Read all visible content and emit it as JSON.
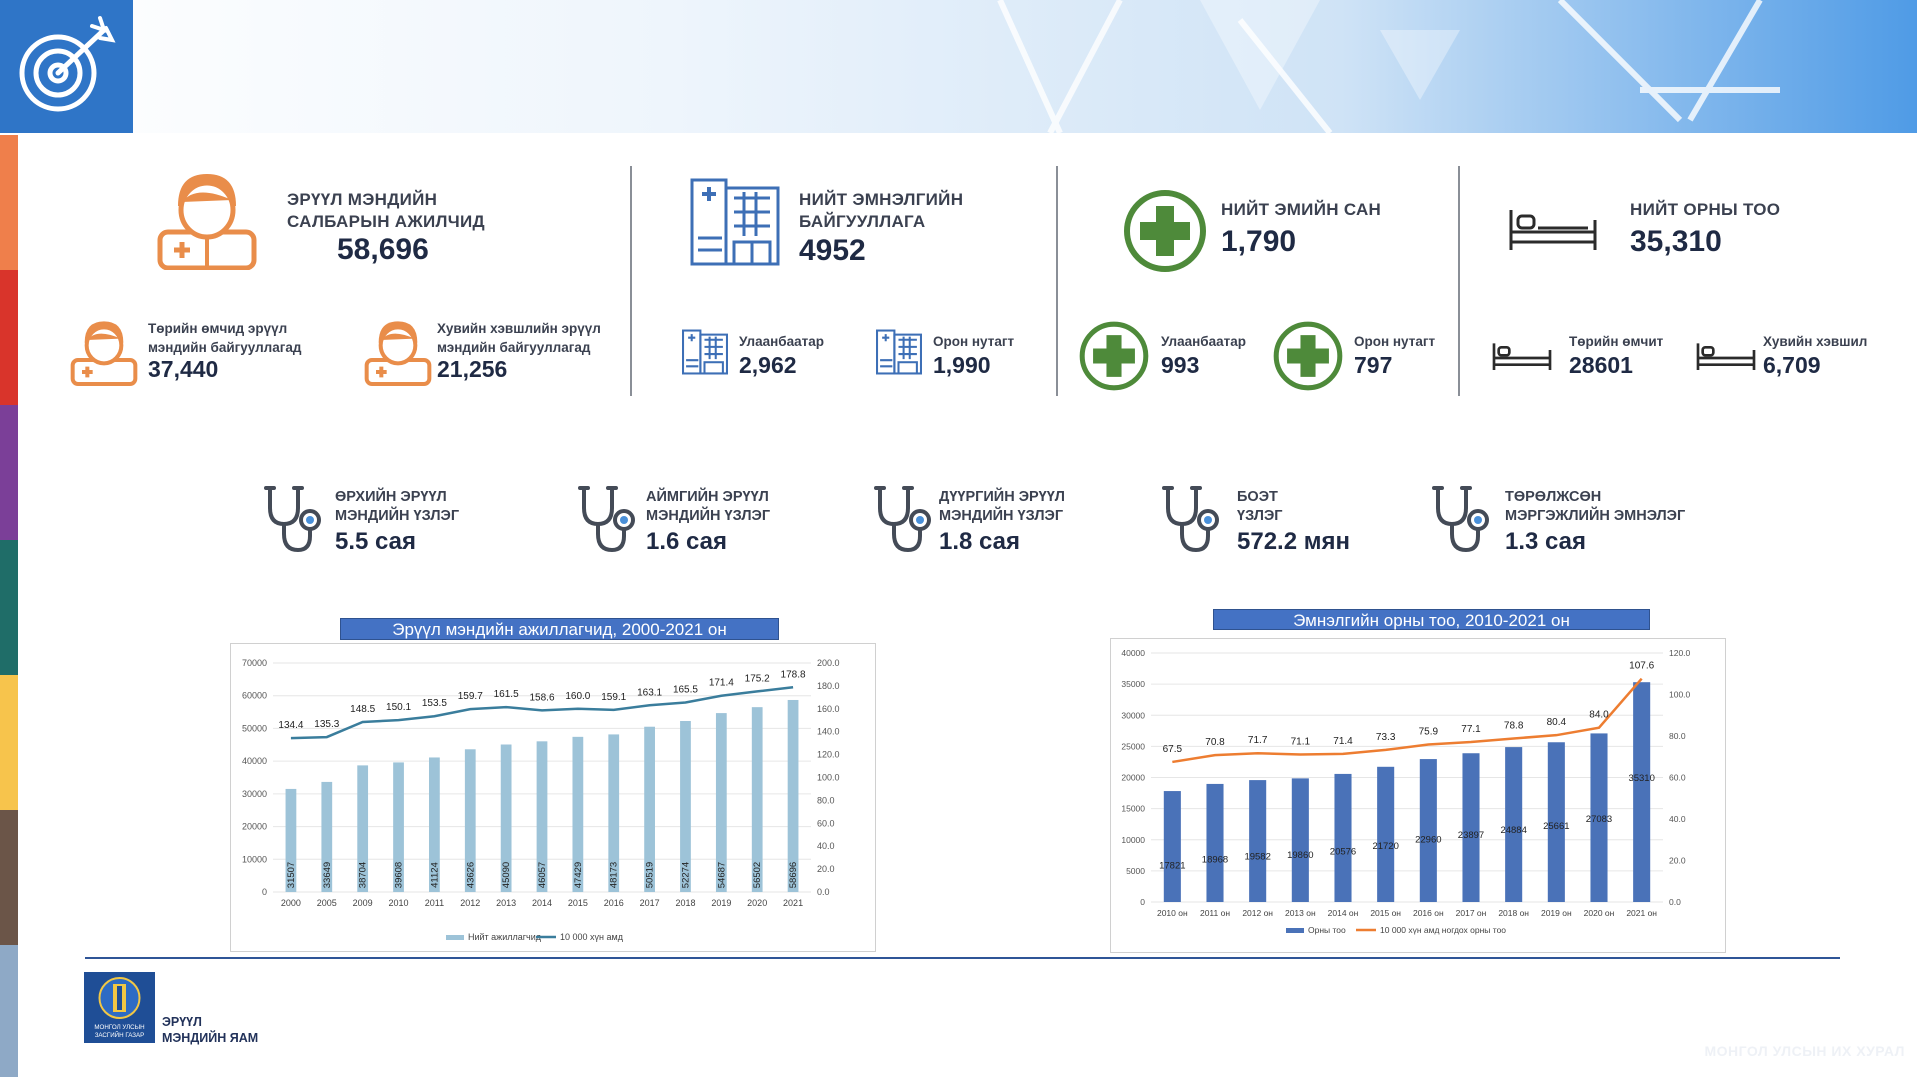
{
  "header": {
    "target_icon": "target-arrow-icon"
  },
  "strip_colors": [
    "#ef7f4b",
    "#d9342b",
    "#7b3f98",
    "#1f6d68",
    "#f7c44c",
    "#6b5548",
    "#8ea9c6"
  ],
  "stats": {
    "workers": {
      "title_1": "ЭРҮҮЛ МЭНДИЙН",
      "title_2": "САЛБАРЫН АЖИЛЧИД",
      "value": "58,696",
      "state_label_1": "Төрийн өмчид эрүүл",
      "state_label_2": "мэндийн байгууллагад",
      "state_value": "37,440",
      "private_label_1": "Хувийн хэвшлийн эрүүл",
      "private_label_2": "мэндийн байгууллагад",
      "private_value": "21,256"
    },
    "hospitals": {
      "title_1": "НИЙТ ЭМНЭЛГИЙН",
      "title_2": "БАЙГУУЛЛАГА",
      "value": "4952",
      "ub_label": "Улаанбаатар",
      "ub_value": "2,962",
      "rural_label": "Орон нутагт",
      "rural_value": "1,990"
    },
    "pharmacies": {
      "title": "НИЙТ ЭМИЙН САН",
      "value": "1,790",
      "ub_label": "Улаанбаатар",
      "ub_value": "993",
      "rural_label": "Орон нутагт",
      "rural_value": "797"
    },
    "beds": {
      "title": "НИЙТ ОРНЫ ТОО",
      "value": "35,310",
      "state_label": "Төрийн өмчит",
      "state_value": "28601",
      "private_label": "Хувийн хэвшил",
      "private_value": "6,709"
    }
  },
  "visits": [
    {
      "title_1": "ӨРХИЙН ЭРҮҮЛ",
      "title_2": "МЭНДИЙН ҮЗЛЭГ",
      "value": "5.5 сая"
    },
    {
      "title_1": "АЙМГИЙН  ЭРҮҮЛ",
      "title_2": "МЭНДИЙН ҮЗЛЭГ",
      "value": "1.6 сая"
    },
    {
      "title_1": "ДҮҮРГИЙН ЭРҮҮЛ",
      "title_2": "МЭНДИЙН ҮЗЛЭГ",
      "value": "1.8 сая"
    },
    {
      "title_1": "БОЭТ",
      "title_2": "ҮЗЛЭГ",
      "value": "572.2 мян"
    },
    {
      "title_1": "ТӨРӨЛЖСӨН",
      "title_2": "МЭРГЭЖЛИЙН ЭМНЭЛЭГ",
      "value": "1.3 сая"
    }
  ],
  "footer": {
    "ministry_1": "ЭРҮҮЛ",
    "ministry_2": "МЭНДИЙН ЯАМ",
    "emblem_text_1": "МОНГОЛ УЛСЫН",
    "emblem_text_2": "ЗАСГИЙН ГАЗАР",
    "watermark": "МОНГОЛ УЛСЫН ИХ ХУРАЛ"
  },
  "chart_data": [
    {
      "type": "bar",
      "title": "Эрүүл мэндийн ажиллагчид, 2000-2021 он",
      "categories": [
        "2000",
        "2005",
        "2009",
        "2010",
        "2011",
        "2012",
        "2013",
        "2014",
        "2015",
        "2016",
        "2017",
        "2018",
        "2019",
        "2020",
        "2021"
      ],
      "series": [
        {
          "name": "Нийт ажиллагчид",
          "type": "bar",
          "axis": "left",
          "color": "#9dc3d8",
          "values": [
            31507,
            33649,
            38704,
            39608,
            41124,
            43626,
            45090,
            46057,
            47429,
            48173,
            50519,
            52274,
            54687,
            56502,
            58696
          ]
        },
        {
          "name": "10 000 хүн амд",
          "type": "line",
          "axis": "right",
          "color": "#3a7d9c",
          "values": [
            134.4,
            135.3,
            148.5,
            150.1,
            153.5,
            159.7,
            161.5,
            158.6,
            160.0,
            159.1,
            163.1,
            165.5,
            171.4,
            175.2,
            178.8
          ]
        }
      ],
      "yticks_left": [
        "0",
        "10000",
        "20000",
        "30000",
        "40000",
        "50000",
        "60000",
        "70000"
      ],
      "yticks_right": [
        "0.0",
        "20.0",
        "40.0",
        "60.0",
        "80.0",
        "100.0",
        "120.0",
        "140.0",
        "160.0",
        "180.0",
        "200.0"
      ],
      "ylim_left": [
        0,
        70000
      ],
      "ylim_right": [
        0,
        200
      ],
      "legend": "bottom"
    },
    {
      "type": "bar",
      "title": "Эмнэлгийн орны тоо, 2010-2021 он",
      "categories": [
        "2010 он",
        "2011 он",
        "2012 он",
        "2013 он",
        "2014 он",
        "2015 он",
        "2016 он",
        "2017 он",
        "2018 он",
        "2019 он",
        "2020 он",
        "2021 он"
      ],
      "series": [
        {
          "name": "Орны  тоо",
          "type": "bar",
          "axis": "left",
          "color": "#4a72b8",
          "values": [
            17821,
            18968,
            19582,
            19860,
            20576,
            21720,
            22960,
            23897,
            24884,
            25661,
            27083,
            35310
          ]
        },
        {
          "name": "10 000 хүн амд ногдох орны тоо",
          "type": "line",
          "axis": "right",
          "color": "#ed7d31",
          "values": [
            67.5,
            70.8,
            71.7,
            71.1,
            71.4,
            73.3,
            75.9,
            77.1,
            78.8,
            80.4,
            84.0,
            107.6
          ]
        }
      ],
      "yticks_left": [
        "0",
        "5000",
        "10000",
        "15000",
        "20000",
        "25000",
        "30000",
        "35000",
        "40000"
      ],
      "yticks_right": [
        "0.0",
        "20.0",
        "40.0",
        "60.0",
        "80.0",
        "100.0",
        "120.0"
      ],
      "ylim_left": [
        0,
        40000
      ],
      "ylim_right": [
        0,
        120
      ],
      "legend": "bottom"
    }
  ]
}
